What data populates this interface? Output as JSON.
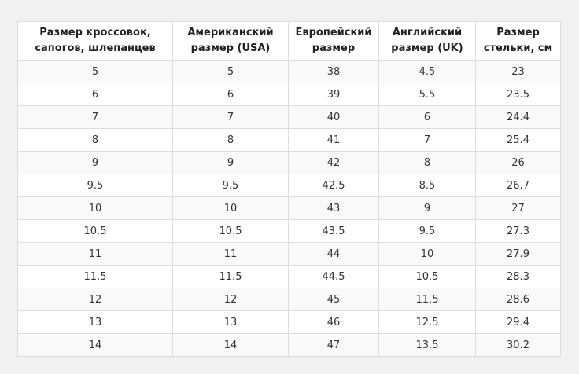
{
  "table": {
    "headers": [
      "Размер кроссовок, сапогов, шлепанцев",
      "Американский размер (USA)",
      "Европейский размер",
      "Английский размер (UK)",
      "Размер стельки, см"
    ],
    "rows": [
      [
        "5",
        "5",
        "38",
        "4.5",
        "23"
      ],
      [
        "6",
        "6",
        "39",
        "5.5",
        "23.5"
      ],
      [
        "7",
        "7",
        "40",
        "6",
        "24.4"
      ],
      [
        "8",
        "8",
        "41",
        "7",
        "25.4"
      ],
      [
        "9",
        "9",
        "42",
        "8",
        "26"
      ],
      [
        "9.5",
        "9.5",
        "42.5",
        "8.5",
        "26.7"
      ],
      [
        "10",
        "10",
        "43",
        "9",
        "27"
      ],
      [
        "10.5",
        "10.5",
        "43.5",
        "9.5",
        "27.3"
      ],
      [
        "11",
        "11",
        "44",
        "10",
        "27.9"
      ],
      [
        "11.5",
        "11.5",
        "44.5",
        "10.5",
        "28.3"
      ],
      [
        "12",
        "12",
        "45",
        "11.5",
        "28.6"
      ],
      [
        "13",
        "13",
        "46",
        "12.5",
        "29.4"
      ],
      [
        "14",
        "14",
        "47",
        "13.5",
        "30.2"
      ]
    ]
  }
}
